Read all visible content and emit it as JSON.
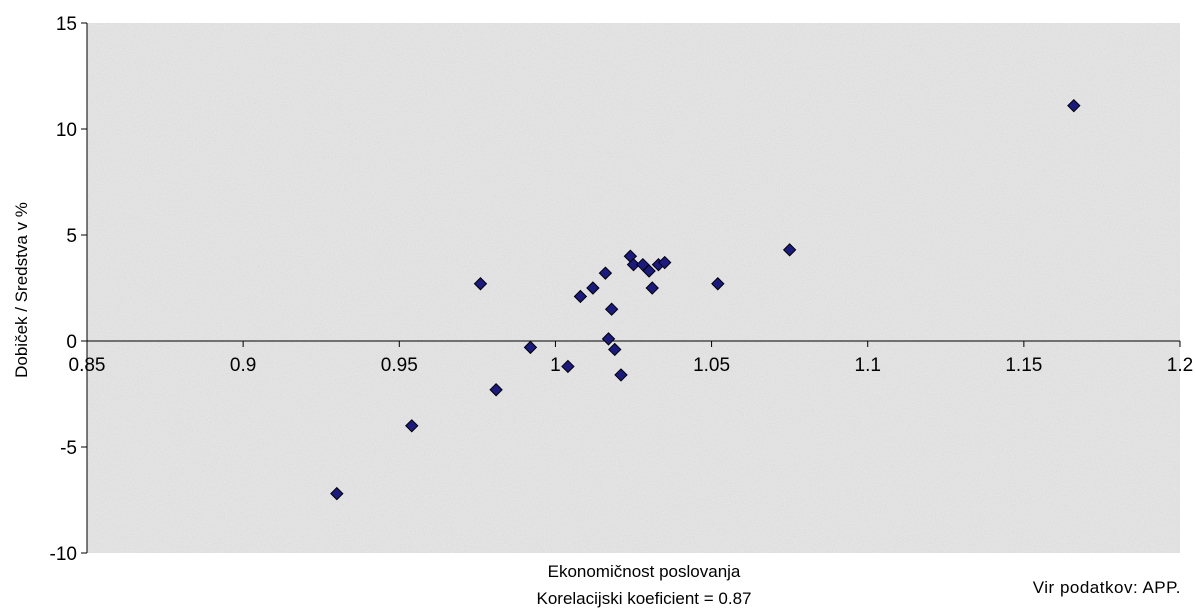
{
  "chart_data": {
    "type": "scatter",
    "title": "",
    "xlabel": "Ekonomičnost poslovanja",
    "ylabel": "Dobiček / Sredstva v %",
    "subtitle": "Korelacijski koeficient = 0.87",
    "source": "Vir podatkov: APP.",
    "xlim": [
      0.85,
      1.2
    ],
    "ylim": [
      -10,
      15
    ],
    "x_ticks": [
      "0.85",
      "0.9",
      "0.95",
      "1",
      "1.05",
      "1.1",
      "1.15",
      "1.2"
    ],
    "y_ticks": [
      "15",
      "10",
      "5",
      "0",
      "-5",
      "-10"
    ],
    "marker": "diamond",
    "marker_color": "#1a1a80",
    "plot_background": "#e6e6e6",
    "grid": false,
    "points": [
      {
        "x": 0.93,
        "y": -7.2
      },
      {
        "x": 0.954,
        "y": -4.0
      },
      {
        "x": 0.976,
        "y": 2.7
      },
      {
        "x": 0.981,
        "y": -2.3
      },
      {
        "x": 0.992,
        "y": -0.3
      },
      {
        "x": 1.004,
        "y": -1.2
      },
      {
        "x": 1.008,
        "y": 2.1
      },
      {
        "x": 1.012,
        "y": 2.5
      },
      {
        "x": 1.016,
        "y": 3.2
      },
      {
        "x": 1.017,
        "y": 0.1
      },
      {
        "x": 1.018,
        "y": 1.5
      },
      {
        "x": 1.019,
        "y": -0.4
      },
      {
        "x": 1.021,
        "y": -1.6
      },
      {
        "x": 1.024,
        "y": 4.0
      },
      {
        "x": 1.025,
        "y": 3.6
      },
      {
        "x": 1.028,
        "y": 3.6
      },
      {
        "x": 1.03,
        "y": 3.3
      },
      {
        "x": 1.031,
        "y": 2.5
      },
      {
        "x": 1.033,
        "y": 3.6
      },
      {
        "x": 1.035,
        "y": 3.7
      },
      {
        "x": 1.052,
        "y": 2.7
      },
      {
        "x": 1.075,
        "y": 4.3
      },
      {
        "x": 1.166,
        "y": 11.1
      }
    ]
  }
}
